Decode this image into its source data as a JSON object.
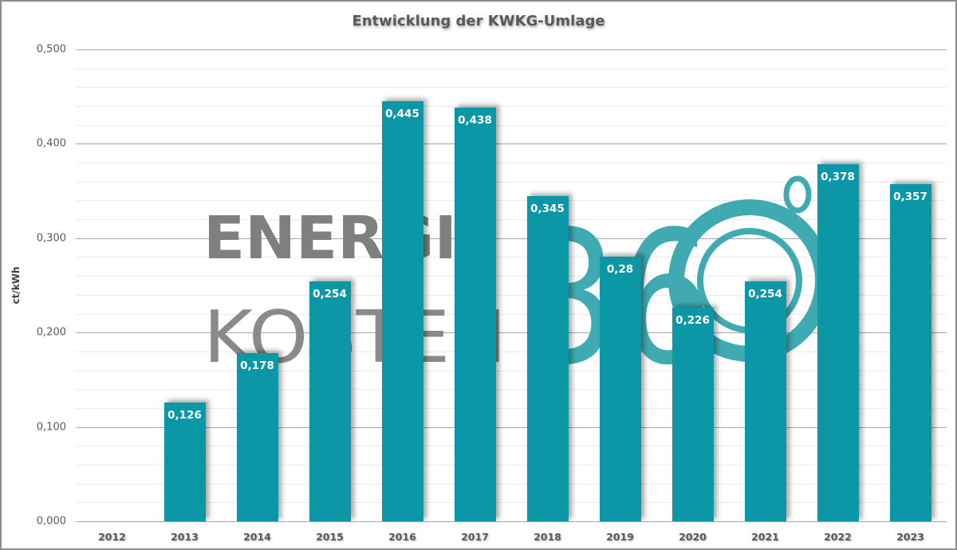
{
  "chart": {
    "title": "Entwicklung der KWKG-Umlage",
    "ylabel": "ct/kWh",
    "bar_color": "#0b97a5",
    "watermark": {
      "line1": "ENERGIE",
      "line2": "KOSTEN",
      "mark": "360°"
    }
  },
  "chart_data": {
    "type": "bar",
    "title": "Entwicklung der KWKG-Umlage",
    "xlabel": "",
    "ylabel": "ct/kWh",
    "ylim": [
      0,
      0.5
    ],
    "yticks": [
      "0,000",
      "0,100",
      "0,200",
      "0,300",
      "0,400",
      "0,500"
    ],
    "grid": true,
    "legend": null,
    "categories": [
      "2012",
      "2013",
      "2014",
      "2015",
      "2016",
      "2017",
      "2018",
      "2019",
      "2020",
      "2021",
      "2022",
      "2023"
    ],
    "values": [
      null,
      0.126,
      0.178,
      0.254,
      0.445,
      0.438,
      0.345,
      0.28,
      0.226,
      0.254,
      0.378,
      0.357
    ],
    "labels": [
      "",
      "0,126",
      "0,178",
      "0,254",
      "0,445",
      "0,438",
      "0,345",
      "0,28",
      "0,226",
      "0,254",
      "0,378",
      "0,357"
    ]
  }
}
